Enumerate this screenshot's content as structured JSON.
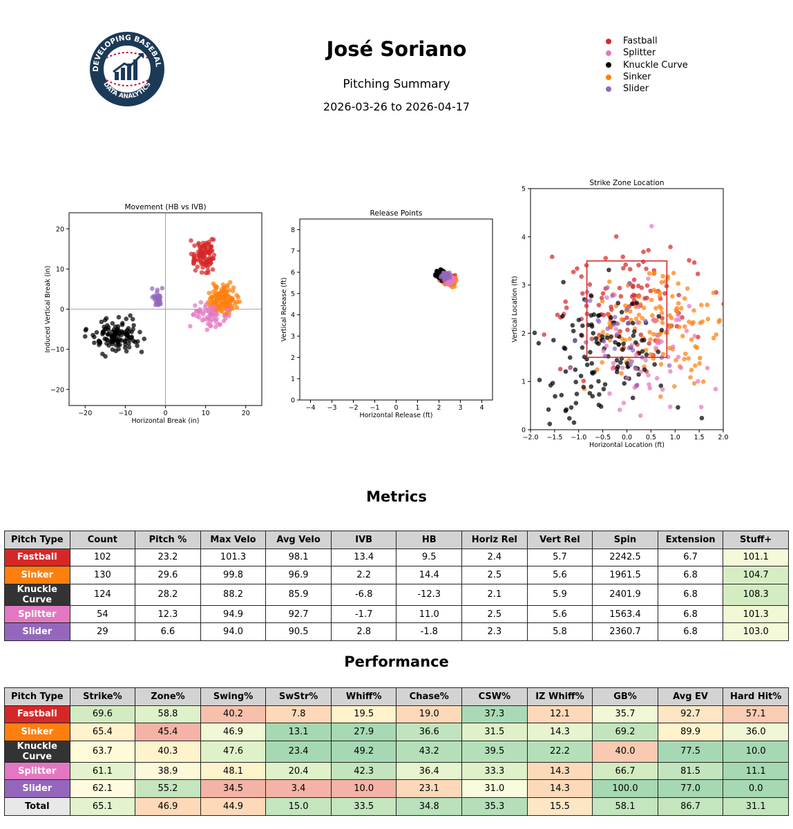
{
  "header": {
    "title": "José Soriano",
    "subtitle": "Pitching Summary",
    "date_range": "2026-03-26 to 2026-04-17",
    "logo_text_top": "DEVELOPING BASEBALL",
    "logo_text_bottom": "DATA ANALYTICS"
  },
  "legend": [
    {
      "label": "Fastball",
      "color": "#d62728"
    },
    {
      "label": "Splitter",
      "color": "#e377c2"
    },
    {
      "label": "Knuckle Curve",
      "color": "#000000"
    },
    {
      "label": "Sinker",
      "color": "#ff7f0e"
    },
    {
      "label": "Slider",
      "color": "#9467bd"
    }
  ],
  "chart_data": [
    {
      "type": "scatter",
      "title": "Movement (HB vs IVB)",
      "xlabel": "Horizontal Break (in)",
      "ylabel": "Induced Vertical Break (in)",
      "xlim": [
        -24,
        24
      ],
      "ylim": [
        -24,
        24
      ],
      "xticks": [
        -20,
        -10,
        0,
        10,
        20
      ],
      "yticks": [
        -20,
        -10,
        0,
        10,
        20
      ],
      "zero_lines": true,
      "series": [
        {
          "name": "Fastball",
          "color": "#d62728",
          "n": 102,
          "center": [
            9.5,
            13.4
          ],
          "spread": [
            1.4,
            1.9
          ]
        },
        {
          "name": "Sinker",
          "color": "#ff7f0e",
          "n": 130,
          "center": [
            14.4,
            2.2
          ],
          "spread": [
            1.8,
            1.6
          ]
        },
        {
          "name": "Knuckle Curve",
          "color": "#000000",
          "n": 124,
          "center": [
            -12.3,
            -6.8
          ],
          "spread": [
            3.0,
            1.9
          ]
        },
        {
          "name": "Splitter",
          "color": "#e377c2",
          "n": 54,
          "center": [
            11.0,
            -1.7
          ],
          "spread": [
            2.2,
            1.5
          ]
        },
        {
          "name": "Slider",
          "color": "#9467bd",
          "n": 29,
          "center": [
            -1.8,
            2.8
          ],
          "spread": [
            0.8,
            1.0
          ]
        }
      ]
    },
    {
      "type": "scatter",
      "title": "Release Points",
      "xlabel": "Horizontal Release (ft)",
      "ylabel": "Vertical Release (ft)",
      "xlim": [
        -4.5,
        4.5
      ],
      "ylim": [
        0,
        8.5
      ],
      "xticks": [
        -4,
        -3,
        -2,
        -1,
        0,
        1,
        2,
        3,
        4
      ],
      "yticks": [
        0,
        1,
        2,
        3,
        4,
        5,
        6,
        7,
        8
      ],
      "series": [
        {
          "name": "Fastball",
          "color": "#d62728",
          "n": 102,
          "center": [
            2.4,
            5.7
          ],
          "spread": [
            0.12,
            0.1
          ]
        },
        {
          "name": "Sinker",
          "color": "#ff7f0e",
          "n": 130,
          "center": [
            2.5,
            5.6
          ],
          "spread": [
            0.12,
            0.1
          ]
        },
        {
          "name": "Knuckle Curve",
          "color": "#000000",
          "n": 124,
          "center": [
            2.1,
            5.9
          ],
          "spread": [
            0.12,
            0.1
          ]
        },
        {
          "name": "Splitter",
          "color": "#e377c2",
          "n": 54,
          "center": [
            2.5,
            5.6
          ],
          "spread": [
            0.1,
            0.1
          ]
        },
        {
          "name": "Slider",
          "color": "#9467bd",
          "n": 29,
          "center": [
            2.3,
            5.8
          ],
          "spread": [
            0.1,
            0.1
          ]
        }
      ]
    },
    {
      "type": "scatter",
      "title": "Strike Zone Location",
      "xlabel": "Horizontal Location (ft)",
      "ylabel": "Vertical Location (ft)",
      "xlim": [
        -2.0,
        2.0
      ],
      "ylim": [
        0,
        5
      ],
      "xticks": [
        -2.0,
        -1.5,
        -1.0,
        -0.5,
        0.0,
        0.5,
        1.0,
        1.5,
        2.0
      ],
      "yticks": [
        0,
        1,
        2,
        3,
        4,
        5
      ],
      "strike_zone": {
        "x": [
          -0.83,
          0.83
        ],
        "y": [
          1.5,
          3.5
        ],
        "color": "#d62728"
      },
      "series": [
        {
          "name": "Fastball",
          "color": "#d62728",
          "n": 102,
          "center": [
            0.0,
            2.6
          ],
          "spread": [
            0.75,
            0.6
          ]
        },
        {
          "name": "Sinker",
          "color": "#ff7f0e",
          "n": 130,
          "center": [
            0.6,
            2.1
          ],
          "spread": [
            0.65,
            0.65
          ]
        },
        {
          "name": "Knuckle Curve",
          "color": "#000000",
          "n": 124,
          "center": [
            -0.5,
            1.6
          ],
          "spread": [
            0.65,
            0.65
          ]
        },
        {
          "name": "Splitter",
          "color": "#e377c2",
          "n": 54,
          "center": [
            0.5,
            1.7
          ],
          "spread": [
            0.7,
            0.7
          ]
        },
        {
          "name": "Slider",
          "color": "#9467bd",
          "n": 29,
          "center": [
            -0.2,
            2.1
          ],
          "spread": [
            0.55,
            0.5
          ]
        }
      ]
    }
  ],
  "metrics": {
    "title": "Metrics",
    "columns": [
      "Pitch Type",
      "Count",
      "Pitch %",
      "Max Velo",
      "Avg Velo",
      "IVB",
      "HB",
      "Horiz Rel",
      "Vert Rel",
      "Spin",
      "Extension",
      "Stuff+"
    ],
    "rows": [
      {
        "pitch": "Fastball",
        "color": "#d62728",
        "values": [
          "102",
          "23.2",
          "101.3",
          "98.1",
          "13.4",
          "9.5",
          "2.4",
          "5.7",
          "2242.5",
          "6.7",
          "101.1"
        ],
        "cell_colors": [
          "",
          "",
          "",
          "",
          "",
          "",
          "",
          "",
          "",
          "",
          "#f3f9d9"
        ]
      },
      {
        "pitch": "Sinker",
        "color": "#ff7f0e",
        "values": [
          "130",
          "29.6",
          "99.8",
          "96.9",
          "2.2",
          "14.4",
          "2.5",
          "5.6",
          "1961.5",
          "6.8",
          "104.7"
        ],
        "cell_colors": [
          "",
          "",
          "",
          "",
          "",
          "",
          "",
          "",
          "",
          "",
          "#d6edc4"
        ]
      },
      {
        "pitch": "Knuckle Curve",
        "color": "#333333",
        "values": [
          "124",
          "28.2",
          "88.2",
          "85.9",
          "-6.8",
          "-12.3",
          "2.1",
          "5.9",
          "2401.9",
          "6.8",
          "108.3"
        ],
        "cell_colors": [
          "",
          "",
          "",
          "",
          "",
          "",
          "",
          "",
          "",
          "",
          "#d3ecc2"
        ]
      },
      {
        "pitch": "Splitter",
        "color": "#e377c2",
        "values": [
          "54",
          "12.3",
          "94.9",
          "92.7",
          "-1.7",
          "11.0",
          "2.5",
          "5.6",
          "1563.4",
          "6.8",
          "101.3"
        ],
        "cell_colors": [
          "",
          "",
          "",
          "",
          "",
          "",
          "",
          "",
          "",
          "",
          "#f1f8d6"
        ]
      },
      {
        "pitch": "Slider",
        "color": "#9467bd",
        "values": [
          "29",
          "6.6",
          "94.0",
          "90.5",
          "2.8",
          "-1.8",
          "2.3",
          "5.8",
          "2360.7",
          "6.8",
          "103.0"
        ],
        "cell_colors": [
          "",
          "",
          "",
          "",
          "",
          "",
          "",
          "",
          "",
          "",
          "#f3f9d9"
        ]
      }
    ]
  },
  "performance": {
    "title": "Performance",
    "columns": [
      "Pitch Type",
      "Strike%",
      "Zone%",
      "Swing%",
      "SwStr%",
      "Whiff%",
      "Chase%",
      "CSW%",
      "IZ Whiff%",
      "GB%",
      "Avg EV",
      "Hard Hit%"
    ],
    "rows": [
      {
        "pitch": "Fastball",
        "color": "#d62728",
        "values": [
          "69.6",
          "58.8",
          "40.2",
          "7.8",
          "19.5",
          "19.0",
          "37.3",
          "12.1",
          "35.7",
          "92.7",
          "57.1"
        ],
        "cell_colors": [
          "#d3ebc0",
          "#dff1c9",
          "#f6c0ac",
          "#fdd9b9",
          "#fff3cc",
          "#fdd9b9",
          "#a9dab5",
          "#fdd9b9",
          "#f1f8d6",
          "#fde6c4",
          "#f9ccb4"
        ]
      },
      {
        "pitch": "Sinker",
        "color": "#ff7f0e",
        "values": [
          "65.4",
          "45.4",
          "46.9",
          "13.1",
          "27.9",
          "36.6",
          "31.5",
          "14.3",
          "69.2",
          "89.9",
          "36.0"
        ],
        "cell_colors": [
          "#fff3cc",
          "#f4b3a6",
          "#f1f8d6",
          "#a6d8b3",
          "#a7d9b4",
          "#c0e4bd",
          "#dff1c9",
          "#e6f4cf",
          "#c3e5bd",
          "#fff3cc",
          "#f0f7d5"
        ]
      },
      {
        "pitch": "Knuckle Curve",
        "color": "#333333",
        "values": [
          "63.7",
          "40.3",
          "47.6",
          "23.4",
          "49.2",
          "43.2",
          "39.5",
          "22.2",
          "40.0",
          "77.5",
          "10.0"
        ],
        "cell_colors": [
          "#fffbd9",
          "#fff3cc",
          "#dff1c9",
          "#a6d8b3",
          "#a6d8b3",
          "#b5dfb9",
          "#b5dfb9",
          "#b5dfb9",
          "#f9c9b1",
          "#a6d8b3",
          "#a6d8b3"
        ]
      },
      {
        "pitch": "Splitter",
        "color": "#e377c2",
        "values": [
          "61.1",
          "38.9",
          "48.1",
          "20.4",
          "42.3",
          "36.4",
          "33.3",
          "14.3",
          "66.7",
          "81.5",
          "11.1"
        ],
        "cell_colors": [
          "#e4f3cd",
          "#fbf9d9",
          "#fff3cc",
          "#dff1c9",
          "#c3e5bd",
          "#e6f4cf",
          "#dff1c9",
          "#fdd9b9",
          "#d3ebc0",
          "#c3e5bd",
          "#a6d8b3"
        ]
      },
      {
        "pitch": "Slider",
        "color": "#9467bd",
        "values": [
          "62.1",
          "55.2",
          "34.5",
          "3.4",
          "10.0",
          "23.1",
          "31.0",
          "14.3",
          "100.0",
          "77.0",
          "0.0"
        ],
        "cell_colors": [
          "#fffbe0",
          "#c4e5be",
          "#f4b3a6",
          "#f4b3a6",
          "#f4b3a6",
          "#fdd9b9",
          "#f8fbde",
          "#fdd9b9",
          "#a6d8b3",
          "#a6d8b3",
          "#a6d8b3"
        ]
      },
      {
        "pitch": "Total",
        "color": "#e8e8e8",
        "values": [
          "65.1",
          "46.9",
          "44.9",
          "15.0",
          "33.5",
          "34.8",
          "35.3",
          "15.5",
          "58.1",
          "86.7",
          "31.1"
        ],
        "cell_colors": [
          "#e4f3cd",
          "#fdd9b9",
          "#fdd9b9",
          "#c4e5be",
          "#c4e5be",
          "#b9e1ba",
          "#b5dfb9",
          "#fde6c4",
          "#c4e5be",
          "#c4e5be",
          "#c4e5be"
        ]
      }
    ]
  }
}
